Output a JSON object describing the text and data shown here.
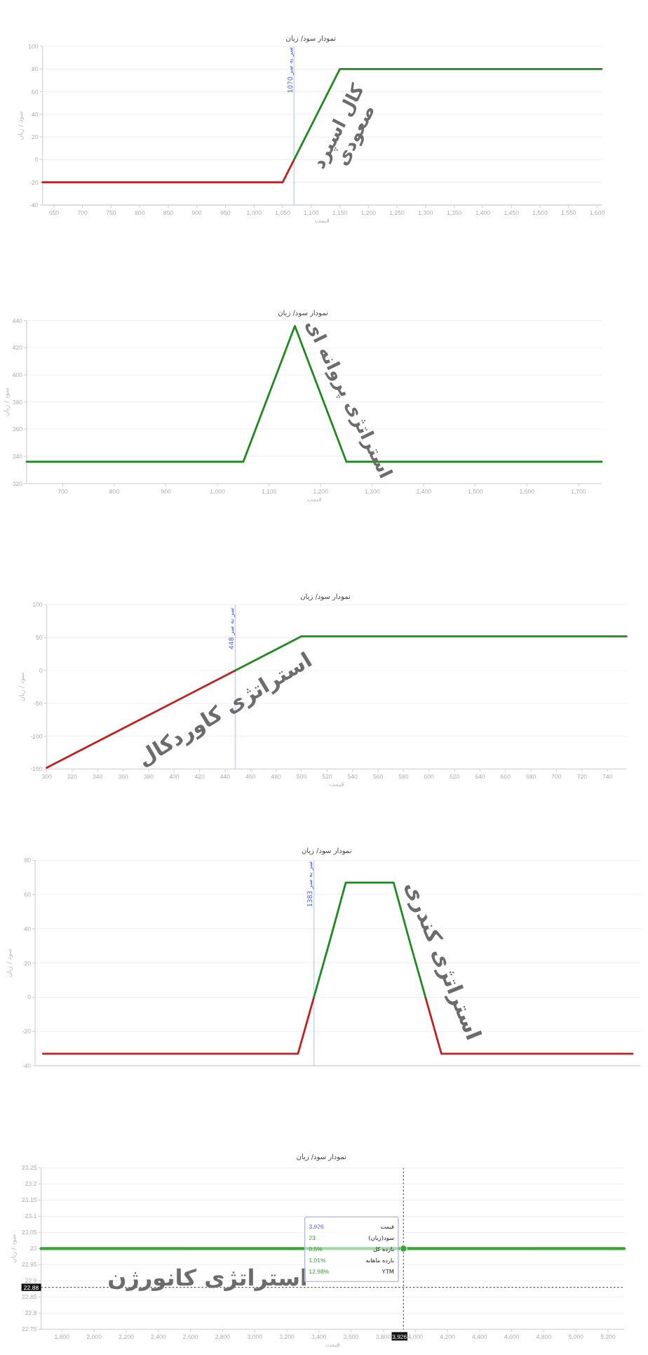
{
  "chart_data": [
    {
      "type": "line",
      "title": "نمودار سود/ زیان",
      "xlabel": "قیمت",
      "ylabel": "سود / زیان",
      "xlim": [
        630,
        1608
      ],
      "ylim": [
        -40,
        100
      ],
      "xticks": [
        650,
        700,
        750,
        800,
        850,
        900,
        950,
        {
          "value": 1000,
          "label": "1,000"
        },
        {
          "value": 1050,
          "label": "1,050"
        },
        {
          "value": 1100,
          "label": "1,100"
        },
        {
          "value": 1150,
          "label": "1,150"
        },
        {
          "value": 1200,
          "label": "1,200"
        },
        {
          "value": 1250,
          "label": "1,250"
        },
        {
          "value": 1300,
          "label": "1,300"
        },
        {
          "value": 1350,
          "label": "1,350"
        },
        {
          "value": 1400,
          "label": "1,400"
        },
        {
          "value": 1450,
          "label": "1,450"
        },
        {
          "value": 1500,
          "label": "1,500"
        },
        {
          "value": 1550,
          "label": "1,550"
        },
        {
          "value": 1600,
          "label": "1,600"
        }
      ],
      "yticks": [
        -40,
        -20,
        0,
        20,
        40,
        60,
        80,
        100
      ],
      "grid": "y",
      "series": [
        {
          "color": "#c21f1f",
          "x": [
            630,
            1050,
            1070
          ],
          "values": [
            -20,
            -20,
            0
          ]
        },
        {
          "color": "#1f8a1f",
          "x": [
            1070,
            1150,
            1608
          ],
          "values": [
            0,
            80,
            80
          ]
        }
      ],
      "ref_lines": [
        {
          "axis": "x",
          "value": 1070,
          "label": "سر به سر 1070",
          "color": "#c9d1f7"
        }
      ],
      "annotations": [
        "کال اسپرد صعودی"
      ]
    },
    {
      "type": "line",
      "title": "نمودار سود/ زیان",
      "xlabel": "قیمت",
      "ylabel": "سود / زیان",
      "xlim": [
        630,
        1745
      ],
      "ylim": [
        320,
        440
      ],
      "xticks": [
        700,
        800,
        900,
        {
          "value": 1000,
          "label": "1,000"
        },
        {
          "value": 1100,
          "label": "1,100"
        },
        {
          "value": 1200,
          "label": "1,200"
        },
        {
          "value": 1300,
          "label": "1,300"
        },
        {
          "value": 1400,
          "label": "1,400"
        },
        {
          "value": 1500,
          "label": "1,500"
        },
        {
          "value": 1600,
          "label": "1,600"
        },
        {
          "value": 1700,
          "label": "1,700"
        }
      ],
      "yticks": [
        320,
        340,
        360,
        380,
        400,
        420,
        440
      ],
      "grid": "y",
      "series": [
        {
          "color": "#1f8a1f",
          "x": [
            630,
            1050,
            1150,
            1250,
            1745
          ],
          "values": [
            336,
            336,
            436,
            336,
            336
          ]
        }
      ],
      "annotations": [
        "استراتژی پروانه ای"
      ]
    },
    {
      "type": "line",
      "title": "نمودار سود/ زیان",
      "xlabel": "قیمت",
      "ylabel": "سود / زیان",
      "xlim": [
        300,
        755
      ],
      "ylim": [
        -150,
        100
      ],
      "xticks": [
        300,
        320,
        340,
        360,
        380,
        400,
        420,
        440,
        460,
        480,
        500,
        520,
        540,
        560,
        580,
        600,
        620,
        640,
        660,
        680,
        700,
        720,
        740
      ],
      "yticks": [
        -150,
        -100,
        -50,
        0,
        50,
        100
      ],
      "grid": "y",
      "series": [
        {
          "color": "#c21f1f",
          "x": [
            300,
            448
          ],
          "values": [
            -148,
            0
          ]
        },
        {
          "color": "#1f8a1f",
          "x": [
            448,
            500,
            755
          ],
          "values": [
            0,
            52,
            52
          ]
        }
      ],
      "ref_lines": [
        {
          "axis": "x",
          "value": 448,
          "label": "سر به سر 448",
          "color": "#c9d1f7"
        }
      ],
      "annotations": [
        "استراتژی کاوردکال"
      ]
    },
    {
      "type": "line",
      "title": "نمودار سود/ زیان",
      "ylabel": "سود / زیان",
      "categories": [
        null,
        null,
        null,
        null,
        null,
        null,
        null,
        null,
        null,
        null,
        null,
        null,
        null,
        null,
        null,
        null,
        null,
        null,
        null,
        null,
        null,
        null,
        null,
        null,
        null,
        null,
        null,
        null,
        null,
        null,
        null,
        null,
        null,
        null,
        null,
        null,
        null,
        null
      ],
      "ylim": [
        -40,
        80
      ],
      "yticks": [
        -40,
        -20,
        0,
        20,
        40,
        60,
        80
      ],
      "grid": "y",
      "series": [
        {
          "color": "#c21f1f",
          "values": [
            -33,
            -33,
            -33,
            -33,
            -33,
            -33,
            -33,
            -33,
            -33,
            -33,
            -33,
            -33,
            -33,
            -33,
            -33,
            -33,
            -33,
            0,
            null,
            null,
            null,
            null,
            null,
            null,
            0,
            -33,
            -33,
            -33,
            -33,
            -33,
            -33,
            -33,
            -33,
            -33,
            -33,
            -33,
            -33,
            -33
          ]
        },
        {
          "color": "#1f8a1f",
          "values": [
            null,
            null,
            null,
            null,
            null,
            null,
            null,
            null,
            null,
            null,
            null,
            null,
            null,
            null,
            null,
            null,
            null,
            0,
            33,
            67,
            67,
            67,
            67,
            33,
            0,
            null,
            null,
            null,
            null,
            null,
            null,
            null,
            null,
            null,
            null,
            null,
            null,
            null
          ]
        }
      ],
      "ref_lines": [
        {
          "axis": "x",
          "label": "سر به سر 1383",
          "color": "#c9d1f7"
        }
      ],
      "annotations": [
        "استراتژی کندری"
      ]
    },
    {
      "type": "line",
      "title": "نمودار سود/ زیان",
      "xlabel": "قیمت",
      "ylabel": "سود / زیان",
      "xlim": [
        1670,
        5300
      ],
      "ylim": [
        22.75,
        23.25
      ],
      "xticks": [
        {
          "value": 1800,
          "label": "1,800"
        },
        {
          "value": 2000,
          "label": "2,000"
        },
        {
          "value": 2200,
          "label": "2,200"
        },
        {
          "value": 2400,
          "label": "2,400"
        },
        {
          "value": 2600,
          "label": "2,600"
        },
        {
          "value": 2800,
          "label": "2,800"
        },
        {
          "value": 3000,
          "label": "3,000"
        },
        {
          "value": 3200,
          "label": "3,200"
        },
        {
          "value": 3400,
          "label": "3,400"
        },
        {
          "value": 3600,
          "label": "3,600"
        },
        {
          "value": 3800,
          "label": "3,800"
        },
        {
          "value": 4000,
          "label": "4,000"
        },
        {
          "value": 4200,
          "label": "4,200"
        },
        {
          "value": 4400,
          "label": "4,400"
        },
        {
          "value": 4600,
          "label": "4,600"
        },
        {
          "value": 4800,
          "label": "4,800"
        },
        {
          "value": 5000,
          "label": "5,000"
        },
        {
          "value": 5200,
          "label": "5,200"
        }
      ],
      "yticks": [
        22.75,
        22.8,
        22.85,
        22.9,
        22.95,
        23,
        23.05,
        23.1,
        23.15,
        23.2,
        23.25
      ],
      "grid": "y",
      "series": [
        {
          "color": "#3aa33a",
          "x": [
            1670,
            5300
          ],
          "values": [
            23,
            23
          ]
        },
        {
          "type": "scatter",
          "color": "#3aa33a",
          "x": [
            3926
          ],
          "values": [
            23
          ]
        }
      ],
      "ref_lines": [
        {
          "axis": "x",
          "value": 3926,
          "label": "3,926",
          "color": "#555555",
          "line_style": "dotted"
        },
        {
          "axis": "y",
          "value": 22.88,
          "label": "22.88",
          "color": "#555555",
          "line_style": "dotted"
        }
      ],
      "annotations": [
        "استراتژی کانورژن",
        "قیمت",
        "3,926",
        "سود(زیان)",
        "23",
        "بازده کل",
        "0.5%",
        "بازده ماهانه",
        "1.01%",
        "YTM",
        "12.98%"
      ]
    }
  ]
}
